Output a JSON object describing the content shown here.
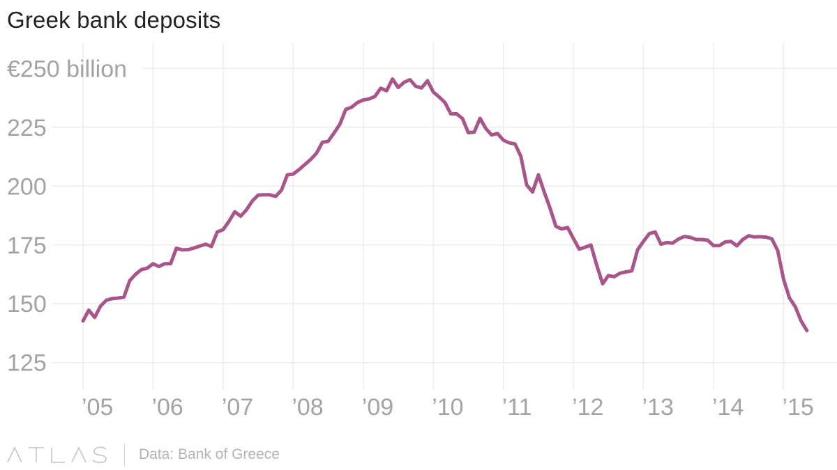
{
  "title": "Greek bank deposits",
  "brand_name": "ATLAS",
  "source": "Data: Bank of Greece",
  "colors": {
    "line": "#a85589",
    "grid": "#ececec",
    "tick_text": "#a3a3a3",
    "title_text": "#222222"
  },
  "chart_data": {
    "type": "line",
    "title": "Greek bank deposits",
    "xlabel": "",
    "ylabel": "",
    "unit": "billion euros",
    "grid": true,
    "legend": "none",
    "xlim": [
      2005.0,
      2015.4
    ],
    "ylim": [
      118,
      256
    ],
    "y_ticks": [
      {
        "value": 250,
        "label": "€250 billion"
      },
      {
        "value": 225,
        "label": "225"
      },
      {
        "value": 200,
        "label": "200"
      },
      {
        "value": 175,
        "label": "175"
      },
      {
        "value": 150,
        "label": "150"
      },
      {
        "value": 125,
        "label": "125"
      }
    ],
    "x_ticks": [
      {
        "value": 2005,
        "label": "’05"
      },
      {
        "value": 2006,
        "label": "’06"
      },
      {
        "value": 2007,
        "label": "’07"
      },
      {
        "value": 2008,
        "label": "’08"
      },
      {
        "value": 2009,
        "label": "’09"
      },
      {
        "value": 2010,
        "label": "’10"
      },
      {
        "value": 2011,
        "label": "’11"
      },
      {
        "value": 2012,
        "label": "’12"
      },
      {
        "value": 2013,
        "label": "’13"
      },
      {
        "value": 2014,
        "label": "’14"
      },
      {
        "value": 2015,
        "label": "’15"
      }
    ],
    "series": [
      {
        "x": [
          2005.0,
          2005.083,
          2005.167,
          2005.25,
          2005.333,
          2005.417,
          2005.5,
          2005.583,
          2005.667,
          2005.75,
          2005.833,
          2005.917,
          2006.0,
          2006.083,
          2006.167,
          2006.25,
          2006.333,
          2006.417,
          2006.5,
          2006.583,
          2006.667,
          2006.75,
          2006.833,
          2006.917,
          2007.0,
          2007.083,
          2007.167,
          2007.25,
          2007.333,
          2007.417,
          2007.5,
          2007.583,
          2007.667,
          2007.75,
          2007.833,
          2007.917,
          2008.0,
          2008.083,
          2008.167,
          2008.25,
          2008.333,
          2008.417,
          2008.5,
          2008.583,
          2008.667,
          2008.75,
          2008.833,
          2008.917,
          2009.0,
          2009.083,
          2009.167,
          2009.25,
          2009.333,
          2009.417,
          2009.5,
          2009.583,
          2009.667,
          2009.75,
          2009.833,
          2009.917,
          2010.0,
          2010.083,
          2010.167,
          2010.25,
          2010.333,
          2010.417,
          2010.5,
          2010.583,
          2010.667,
          2010.75,
          2010.833,
          2010.917,
          2011.0,
          2011.083,
          2011.167,
          2011.25,
          2011.333,
          2011.417,
          2011.5,
          2011.583,
          2011.667,
          2011.75,
          2011.833,
          2011.917,
          2012.0,
          2012.083,
          2012.167,
          2012.25,
          2012.333,
          2012.417,
          2012.5,
          2012.583,
          2012.667,
          2012.75,
          2012.833,
          2012.917,
          2013.0,
          2013.083,
          2013.167,
          2013.25,
          2013.333,
          2013.417,
          2013.5,
          2013.583,
          2013.667,
          2013.75,
          2013.833,
          2013.917,
          2014.0,
          2014.083,
          2014.167,
          2014.25,
          2014.333,
          2014.417,
          2014.5,
          2014.583,
          2014.667,
          2014.75,
          2014.833,
          2014.917,
          2015.0,
          2015.083,
          2015.167,
          2015.25,
          2015.333
        ],
        "y": [
          142.7,
          147.3,
          144.2,
          149.0,
          151.5,
          152.2,
          152.4,
          152.8,
          159.8,
          162.5,
          164.5,
          165.1,
          167.0,
          165.8,
          167.0,
          167.0,
          173.6,
          172.9,
          173.0,
          173.7,
          174.5,
          175.3,
          174.3,
          180.5,
          181.5,
          185.0,
          189.1,
          187.2,
          189.9,
          193.7,
          196.2,
          196.3,
          196.3,
          195.6,
          198.3,
          204.8,
          205.1,
          207.0,
          209.2,
          211.3,
          214.0,
          218.6,
          219.0,
          222.6,
          226.3,
          232.6,
          233.5,
          235.5,
          236.6,
          237.0,
          238.1,
          241.6,
          240.5,
          245.5,
          241.9,
          244.1,
          245.2,
          242.4,
          241.7,
          244.8,
          240.0,
          237.9,
          235.5,
          230.7,
          230.7,
          228.7,
          222.7,
          222.9,
          228.8,
          224.5,
          221.7,
          222.4,
          219.5,
          218.4,
          217.9,
          212.6,
          200.5,
          197.5,
          204.8,
          197.5,
          190.6,
          182.9,
          181.8,
          182.4,
          177.7,
          173.2,
          174.0,
          175.0,
          166.4,
          158.5,
          162.0,
          161.5,
          163.0,
          163.5,
          164.0,
          173.0,
          176.5,
          179.8,
          180.5,
          175.3,
          176.0,
          175.8,
          177.5,
          178.6,
          178.2,
          177.3,
          177.3,
          177.0,
          174.7,
          174.7,
          176.3,
          176.5,
          174.6,
          177.3,
          178.9,
          178.4,
          178.5,
          178.3,
          177.6,
          172.5,
          160.4,
          152.5,
          148.7,
          142.7,
          138.6
        ]
      }
    ]
  }
}
